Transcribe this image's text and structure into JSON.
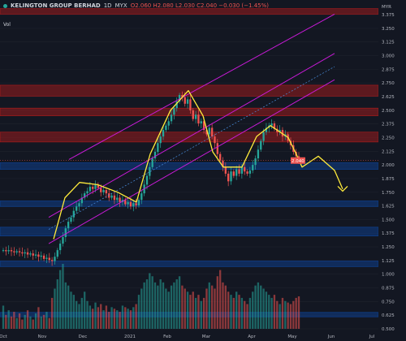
{
  "header": {
    "symbol": "KELINGTON GROUP BERHAD",
    "interval": "1D",
    "exchange": "MYX",
    "ohlc": "O2.060 H2.080 L2.030 C2.040 −0.030 (−1.45%)",
    "volume_label": "Vol"
  },
  "colors": {
    "background": "#131722",
    "up": "#26a69a",
    "down": "#ef5350",
    "channel": "#c71ad6",
    "channel_mid": "#4a90e2",
    "zone_red": "#b71c1c",
    "zone_blue": "#0d47a1",
    "pattern": "#ffeb3b"
  },
  "chart_data": {
    "type": "candlestick",
    "x_ticks": [
      "Oct",
      "Nov",
      "Dec",
      "2021",
      "Feb",
      "Mar",
      "Apr",
      "May",
      "Jun",
      "Jul"
    ],
    "y_ticks": [
      "3.375",
      "3.250",
      "3.125",
      "3.000",
      "2.875",
      "2.750",
      "2.625",
      "2.500",
      "2.375",
      "2.250",
      "2.125",
      "2.000",
      "1.875",
      "1.750",
      "1.625",
      "1.500",
      "1.375",
      "1.250",
      "1.125",
      "1.000",
      "0.875",
      "0.750",
      "0.625",
      "0.500"
    ],
    "ylim": [
      0.5,
      3.45
    ],
    "axis_label": "MYR",
    "last_price": "2.040",
    "annotations": [
      "head-and-shoulders",
      "ascending-channel",
      "projected-drop-arrow"
    ],
    "zones": [
      {
        "type": "resistance",
        "from": 3.38,
        "to": 3.43
      },
      {
        "type": "resistance",
        "from": 2.63,
        "to": 2.73
      },
      {
        "type": "resistance",
        "from": 2.45,
        "to": 2.52
      },
      {
        "type": "resistance",
        "from": 2.21,
        "to": 2.3
      },
      {
        "type": "support",
        "from": 1.96,
        "to": 2.02
      },
      {
        "type": "support",
        "from": 1.62,
        "to": 1.67
      },
      {
        "type": "support",
        "from": 1.35,
        "to": 1.43
      },
      {
        "type": "support",
        "from": 1.07,
        "to": 1.12
      },
      {
        "type": "support",
        "from": 0.61,
        "to": 0.65
      }
    ],
    "series": [
      {
        "values": [
          1.22,
          1.21,
          1.22,
          1.21,
          1.2,
          1.21,
          1.2,
          1.19,
          1.2,
          1.18,
          1.19,
          1.17,
          1.18,
          1.16,
          1.17,
          1.14,
          1.15,
          1.13,
          1.12,
          1.16,
          1.22,
          1.28,
          1.34,
          1.42,
          1.48,
          1.52,
          1.58,
          1.62,
          1.65,
          1.7,
          1.74,
          1.76,
          1.8,
          1.78,
          1.82,
          1.79,
          1.75,
          1.77,
          1.74,
          1.7,
          1.72,
          1.68,
          1.7,
          1.66,
          1.68,
          1.64,
          1.66,
          1.62,
          1.65,
          1.63,
          1.68,
          1.74,
          1.82,
          1.9,
          1.98,
          2.06,
          2.12,
          2.2,
          2.26,
          2.32,
          2.36,
          2.4,
          2.46,
          2.52,
          2.58,
          2.64,
          2.62,
          2.56,
          2.6,
          2.5,
          2.42,
          2.46,
          2.38,
          2.4,
          2.32,
          2.28,
          2.34,
          2.26,
          2.2,
          2.1,
          2.04,
          1.98,
          1.92,
          1.85,
          1.94,
          1.9,
          1.96,
          1.92,
          1.98,
          1.94,
          1.92,
          1.95,
          2.0,
          2.06,
          2.14,
          2.22,
          2.3,
          2.34,
          2.36,
          2.38,
          2.33,
          2.3,
          2.32,
          2.26,
          2.28,
          2.22,
          2.18,
          2.12,
          2.08,
          2.04
        ]
      },
      {
        "values": [
          150,
          90,
          120,
          80,
          110,
          70,
          100,
          60,
          90,
          120,
          80,
          60,
          100,
          140,
          80,
          90,
          110,
          70,
          200,
          260,
          320,
          380,
          420,
          300,
          280,
          240,
          220,
          180,
          160,
          200,
          240,
          180,
          150,
          130,
          170,
          140,
          160,
          120,
          150,
          110,
          140,
          130,
          120,
          110,
          150,
          140,
          130,
          120,
          140,
          160,
          220,
          260,
          300,
          320,
          360,
          340,
          300,
          280,
          320,
          300,
          260,
          240,
          280,
          300,
          320,
          340,
          280,
          260,
          240,
          220,
          240,
          200,
          220,
          180,
          200,
          260,
          300,
          280,
          260,
          340,
          380,
          300,
          280,
          240,
          220,
          200,
          240,
          220,
          200,
          180,
          160,
          200,
          240,
          280,
          300,
          280,
          260,
          240,
          220,
          200,
          220,
          180,
          160,
          200,
          180,
          170,
          160,
          180,
          200,
          210
        ]
      }
    ]
  }
}
